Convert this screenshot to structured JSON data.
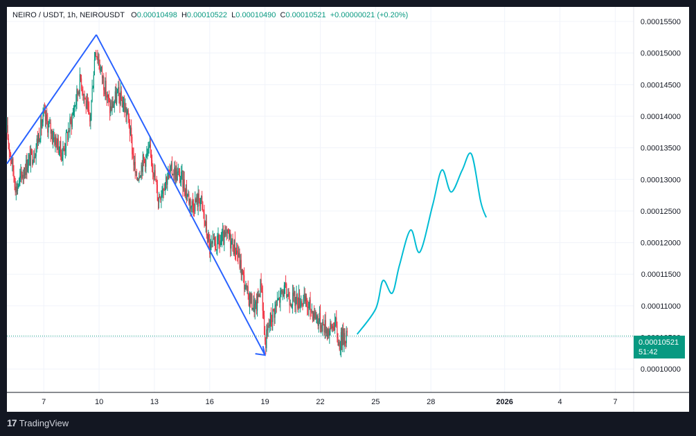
{
  "header": {
    "symbol": "NEIRO / USDT, 1h, NEIROUSDT",
    "open_label": "O",
    "open": "0.00010498",
    "high_label": "H",
    "high": "0.00010522",
    "low_label": "L",
    "low": "0.00010490",
    "close_label": "C",
    "close": "0.00010521",
    "change": "+0.00000021 (+0.20%)"
  },
  "price_tag": {
    "price": "0.00010521",
    "countdown": "51:42"
  },
  "brand": {
    "logo": "17",
    "name": "TradingView"
  },
  "colors": {
    "up": "#089981",
    "down": "#f23645",
    "drawing": "#2962ff",
    "projection": "#00bcd4",
    "grid": "#f0f3fa"
  },
  "chart_data": {
    "type": "candlestick",
    "interval": "1h",
    "y_axis": {
      "ticks": [
        "0.00010000",
        "0.00010500",
        "0.00011000",
        "0.00011500",
        "0.00012000",
        "0.00012500",
        "0.00013000",
        "0.00013500",
        "0.00014000",
        "0.00014500",
        "0.00015000",
        "0.00015500"
      ],
      "ylim": [
        9.63e-05,
        0.0001573
      ]
    },
    "x_axis": {
      "ticks": [
        {
          "label": "7",
          "day": 7
        },
        {
          "label": "10",
          "day": 10
        },
        {
          "label": "13",
          "day": 13
        },
        {
          "label": "16",
          "day": 16
        },
        {
          "label": "19",
          "day": 19
        },
        {
          "label": "22",
          "day": 22
        },
        {
          "label": "25",
          "day": 25
        },
        {
          "label": "28",
          "day": 28
        },
        {
          "label": "2026",
          "day": 32,
          "bold": true
        },
        {
          "label": "4",
          "day": 35
        },
        {
          "label": "7",
          "day": 38
        }
      ],
      "xlim": [
        5.0,
        39.0
      ]
    },
    "price_path": [
      [
        5.0,
        0.0001375
      ],
      [
        5.5,
        0.0001285
      ],
      [
        6.0,
        0.000132
      ],
      [
        6.5,
        0.0001345
      ],
      [
        7.0,
        0.00014
      ],
      [
        7.5,
        0.000137
      ],
      [
        8.0,
        0.000134
      ],
      [
        8.5,
        0.0001395
      ],
      [
        9.0,
        0.000146
      ],
      [
        9.5,
        0.000139
      ],
      [
        9.8,
        0.000151
      ],
      [
        10.2,
        0.000146
      ],
      [
        10.6,
        0.000141
      ],
      [
        11.0,
        0.0001435
      ],
      [
        11.3,
        0.000142
      ],
      [
        11.6,
        0.0001395
      ],
      [
        12.0,
        0.00013
      ],
      [
        12.4,
        0.000133
      ],
      [
        12.8,
        0.0001345
      ],
      [
        13.2,
        0.000127
      ],
      [
        13.6,
        0.00013
      ],
      [
        14.0,
        0.0001315
      ],
      [
        14.5,
        0.00013
      ],
      [
        15.0,
        0.000126
      ],
      [
        15.5,
        0.000127
      ],
      [
        16.0,
        0.000119
      ],
      [
        16.5,
        0.00012
      ],
      [
        17.0,
        0.000121
      ],
      [
        17.5,
        0.0001185
      ],
      [
        18.0,
        0.000112
      ],
      [
        18.5,
        0.0001095
      ],
      [
        18.8,
        0.000114
      ],
      [
        19.0,
        0.000104
      ],
      [
        19.3,
        0.000108
      ],
      [
        19.6,
        0.00011
      ],
      [
        20.0,
        0.0001125
      ],
      [
        20.5,
        0.000111
      ],
      [
        21.0,
        0.000111
      ],
      [
        21.5,
        0.0001095
      ],
      [
        22.0,
        0.0001075
      ],
      [
        22.5,
        0.000106
      ],
      [
        22.8,
        0.0001075
      ],
      [
        23.0,
        0.000104
      ],
      [
        23.3,
        0.0001055
      ],
      [
        23.5,
        0.000105
      ]
    ],
    "drawings": {
      "trend_line_1": [
        [
          5.0,
          0.0001325
        ],
        [
          9.85,
          0.0001529
        ]
      ],
      "trend_line_2": [
        [
          9.85,
          0.0001529
        ],
        [
          19.0,
          0.0001022
        ]
      ],
      "projection": [
        [
          24.0,
          0.0001055
        ],
        [
          25.0,
          0.0001095
        ],
        [
          25.4,
          0.000114
        ],
        [
          25.9,
          0.000112
        ],
        [
          26.3,
          0.0001165
        ],
        [
          26.9,
          0.000122
        ],
        [
          27.4,
          0.0001185
        ],
        [
          28.1,
          0.000126
        ],
        [
          28.6,
          0.0001315
        ],
        [
          29.1,
          0.000128
        ],
        [
          29.7,
          0.0001315
        ],
        [
          30.2,
          0.000134
        ],
        [
          30.7,
          0.0001265
        ],
        [
          31.0,
          0.000124
        ]
      ]
    },
    "last_price": 0.00010521
  }
}
